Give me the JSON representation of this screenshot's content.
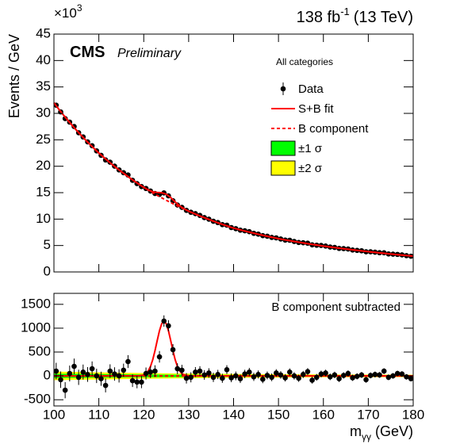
{
  "chart_data": [
    {
      "type": "scatter",
      "y_label": "Events / GeV",
      "y_multiplier": "×10",
      "y_multiplier_exp": "3",
      "lumi": "138 fb",
      "lumi_exp": "-1",
      "energy": "(13 TeV)",
      "experiment": "CMS",
      "status": "Preliminary",
      "legend_title": "All categories",
      "xlim": [
        100,
        180
      ],
      "xticks": [
        100,
        110,
        120,
        130,
        140,
        150,
        160,
        170,
        180
      ],
      "ylim": [
        0,
        45
      ],
      "yticks": [
        0,
        5,
        10,
        15,
        20,
        25,
        30,
        35,
        40,
        45
      ],
      "series": [
        {
          "name": "Data",
          "style": "points",
          "color": "#000000",
          "x": [
            100.5,
            101.5,
            102.5,
            103.5,
            104.5,
            105.5,
            106.5,
            107.5,
            108.5,
            109.5,
            110.5,
            111.5,
            112.5,
            113.5,
            114.5,
            115.5,
            116.5,
            117.5,
            118.5,
            119.5,
            120.5,
            121.5,
            122.5,
            123.5,
            124.5,
            125.5,
            126.5,
            127.5,
            128.5,
            129.5,
            130.5,
            131.5,
            132.5,
            133.5,
            134.5,
            135.5,
            136.5,
            137.5,
            138.5,
            139.5,
            140.5,
            141.5,
            142.5,
            143.5,
            144.5,
            145.5,
            146.5,
            147.5,
            148.5,
            149.5,
            150.5,
            151.5,
            152.5,
            153.5,
            154.5,
            155.5,
            156.5,
            157.5,
            158.5,
            159.5,
            160.5,
            161.5,
            162.5,
            163.5,
            164.5,
            165.5,
            166.5,
            167.5,
            168.5,
            169.5,
            170.5,
            171.5,
            172.5,
            173.5,
            174.5,
            175.5,
            176.5,
            177.5,
            178.5,
            179.5
          ],
          "values": [
            31.55,
            30.28,
            29.01,
            28.35,
            27.52,
            26.34,
            25.54,
            24.61,
            23.88,
            22.91,
            22.07,
            21.19,
            20.77,
            20.01,
            19.31,
            18.78,
            18.34,
            17.33,
            16.72,
            16.15,
            15.79,
            15.31,
            14.84,
            14.67,
            14.95,
            14.4,
            13.47,
            12.66,
            12.22,
            11.65,
            11.29,
            11.03,
            10.7,
            10.28,
            9.99,
            9.59,
            9.34,
            8.96,
            8.85,
            8.4,
            8.19,
            7.9,
            7.79,
            7.62,
            7.31,
            7.16,
            6.87,
            6.76,
            6.54,
            6.45,
            6.24,
            6.03,
            6.0,
            5.77,
            5.58,
            5.52,
            5.44,
            5.13,
            5.06,
            5.01,
            4.9,
            4.71,
            4.64,
            4.45,
            4.41,
            4.34,
            4.15,
            4.08,
            4.01,
            3.82,
            3.81,
            3.74,
            3.64,
            3.63,
            3.41,
            3.36,
            3.32,
            3.23,
            3.09,
            2.98
          ]
        },
        {
          "name": "S+B fit",
          "style": "line",
          "color": "#ff0000",
          "x": [
            100,
            101,
            102,
            103,
            104,
            105,
            106,
            107,
            108,
            109,
            110,
            111,
            112,
            113,
            114,
            115,
            116,
            117,
            118,
            119,
            120,
            121,
            122,
            123,
            124,
            125,
            126,
            127,
            128,
            129,
            130,
            131,
            132,
            133,
            134,
            135,
            136,
            137,
            138,
            139,
            140,
            141,
            142,
            143,
            144,
            145,
            146,
            147,
            148,
            149,
            150,
            151,
            152,
            153,
            154,
            155,
            156,
            157,
            158,
            159,
            160,
            161,
            162,
            163,
            164,
            165,
            166,
            167,
            168,
            169,
            170,
            171,
            172,
            173,
            174,
            175,
            176,
            177,
            178,
            179,
            180
          ],
          "values": [
            32.0,
            30.89,
            29.82,
            28.79,
            27.8,
            26.83,
            25.9,
            25.01,
            24.14,
            23.31,
            22.5,
            21.75,
            21.02,
            20.31,
            19.63,
            18.98,
            18.34,
            17.73,
            17.13,
            16.56,
            16.0,
            15.53,
            15.17,
            15.03,
            14.98,
            14.72,
            14.08,
            13.24,
            12.49,
            11.95,
            11.5,
            11.13,
            10.77,
            10.43,
            10.09,
            9.77,
            9.46,
            9.15,
            8.86,
            8.57,
            8.3,
            8.07,
            7.85,
            7.64,
            7.43,
            7.23,
            7.03,
            6.84,
            6.66,
            6.48,
            6.3,
            6.14,
            5.99,
            5.84,
            5.7,
            5.56,
            5.42,
            5.28,
            5.15,
            5.03,
            4.9,
            4.78,
            4.67,
            4.56,
            4.45,
            4.34,
            4.24,
            4.14,
            4.04,
            3.94,
            3.85,
            3.75,
            3.66,
            3.57,
            3.48,
            3.4,
            3.31,
            3.23,
            3.15,
            3.07,
            3.0
          ]
        },
        {
          "name": "B component",
          "style": "dashed",
          "color": "#ff0000",
          "x": [
            100,
            101,
            102,
            103,
            104,
            105,
            106,
            107,
            108,
            109,
            110,
            111,
            112,
            113,
            114,
            115,
            116,
            117,
            118,
            119,
            120,
            121,
            122,
            123,
            124,
            125,
            126,
            127,
            128,
            129,
            130,
            131,
            132,
            133,
            134,
            135,
            136,
            137,
            138,
            139,
            140,
            141,
            142,
            143,
            144,
            145,
            146,
            147,
            148,
            149,
            150,
            151,
            152,
            153,
            154,
            155,
            156,
            157,
            158,
            159,
            160,
            161,
            162,
            163,
            164,
            165,
            166,
            167,
            168,
            169,
            170,
            171,
            172,
            173,
            174,
            175,
            176,
            177,
            178,
            179,
            180
          ],
          "values": [
            32.0,
            30.89,
            29.82,
            28.79,
            27.8,
            26.83,
            25.9,
            25.01,
            24.14,
            23.31,
            22.5,
            21.75,
            21.02,
            20.31,
            19.63,
            18.98,
            18.34,
            17.73,
            17.13,
            16.56,
            16.0,
            15.48,
            14.98,
            14.5,
            14.03,
            13.57,
            13.13,
            12.71,
            12.3,
            11.9,
            11.5,
            11.13,
            10.77,
            10.43,
            10.09,
            9.77,
            9.46,
            9.15,
            8.86,
            8.57,
            8.3,
            8.07,
            7.85,
            7.64,
            7.43,
            7.23,
            7.03,
            6.84,
            6.66,
            6.48,
            6.3,
            6.14,
            5.99,
            5.84,
            5.7,
            5.56,
            5.42,
            5.28,
            5.15,
            5.03,
            4.9,
            4.78,
            4.67,
            4.56,
            4.45,
            4.34,
            4.24,
            4.14,
            4.04,
            3.94,
            3.85,
            3.75,
            3.66,
            3.57,
            3.48,
            3.4,
            3.31,
            3.23,
            3.15,
            3.07,
            3.0
          ]
        }
      ]
    },
    {
      "type": "scatter",
      "annotation": "B component subtracted",
      "x_label": "m",
      "x_label_sub": "γγ",
      "x_label_unit": "(GeV)",
      "xlim": [
        100,
        180
      ],
      "xticks": [
        100,
        110,
        120,
        130,
        140,
        150,
        160,
        170,
        180
      ],
      "ylim": [
        -630,
        1730
      ],
      "yticks": [
        -500,
        0,
        500,
        1000,
        1500
      ],
      "bands": [
        {
          "name": "±2 σ",
          "color": "#ffff00",
          "x": [
            100,
            110,
            120,
            130,
            140,
            150,
            160,
            170,
            180
          ],
          "lower": [
            -90,
            -75,
            -60,
            -50,
            -40,
            -35,
            -30,
            -28,
            -25
          ],
          "upper": [
            90,
            75,
            60,
            50,
            40,
            35,
            30,
            28,
            25
          ]
        },
        {
          "name": "±1 σ",
          "color": "#00ff00",
          "x": [
            100,
            110,
            120,
            130,
            140,
            150,
            160,
            170,
            180
          ],
          "lower": [
            -45,
            -38,
            -30,
            -25,
            -20,
            -18,
            -15,
            -14,
            -13
          ],
          "upper": [
            45,
            38,
            30,
            25,
            20,
            18,
            15,
            14,
            13
          ]
        }
      ],
      "series": [
        {
          "name": "B component",
          "style": "dashed",
          "color": "#ff0000",
          "x": [
            100,
            180
          ],
          "values": [
            0,
            0
          ]
        },
        {
          "name": "S+B fit",
          "style": "line",
          "color": "#ff0000",
          "x": [
            100,
            118,
            118.5,
            119,
            119.5,
            120,
            120.5,
            121,
            121.5,
            122,
            122.5,
            123,
            123.5,
            124,
            124.5,
            125,
            125.5,
            126,
            126.5,
            127,
            127.5,
            128,
            128.5,
            129,
            129.5,
            130,
            130.5,
            131,
            131.5,
            132,
            180
          ],
          "values": [
            0,
            0,
            1,
            3,
            9,
            22,
            50,
            105,
            198,
            339,
            527,
            741,
            946,
            1095,
            1150,
            1095,
            946,
            741,
            527,
            339,
            198,
            105,
            50,
            22,
            9,
            3,
            1,
            0,
            0,
            0,
            0
          ]
        },
        {
          "name": "Data",
          "style": "points",
          "color": "#000000",
          "x": [
            100.5,
            101.5,
            102.5,
            103.5,
            104.5,
            105.5,
            106.5,
            107.5,
            108.5,
            109.5,
            110.5,
            111.5,
            112.5,
            113.5,
            114.5,
            115.5,
            116.5,
            117.5,
            118.5,
            119.5,
            120.5,
            121.5,
            122.5,
            123.5,
            124.5,
            125.5,
            126.5,
            127.5,
            128.5,
            129.5,
            130.5,
            131.5,
            132.5,
            133.5,
            134.5,
            135.5,
            136.5,
            137.5,
            138.5,
            139.5,
            140.5,
            141.5,
            142.5,
            143.5,
            144.5,
            145.5,
            146.5,
            147.5,
            148.5,
            149.5,
            150.5,
            151.5,
            152.5,
            153.5,
            154.5,
            155.5,
            156.5,
            157.5,
            158.5,
            159.5,
            160.5,
            161.5,
            162.5,
            163.5,
            164.5,
            165.5,
            166.5,
            167.5,
            168.5,
            169.5,
            170.5,
            171.5,
            172.5,
            173.5,
            174.5,
            175.5,
            176.5,
            177.5,
            178.5,
            179.5
          ],
          "values": [
            100,
            -80,
            -300,
            50,
            200,
            -30,
            80,
            30,
            150,
            0,
            -60,
            -200,
            100,
            40,
            0,
            120,
            300,
            -100,
            -130,
            -130,
            50,
            80,
            100,
            400,
            1150,
            1050,
            550,
            150,
            120,
            -50,
            -30,
            80,
            100,
            20,
            60,
            -30,
            30,
            -50,
            130,
            -40,
            0,
            -60,
            40,
            80,
            -20,
            30,
            -70,
            10,
            -30,
            60,
            20,
            -40,
            80,
            0,
            -50,
            30,
            90,
            -90,
            -30,
            40,
            60,
            -20,
            20,
            -60,
            10,
            50,
            -40,
            -10,
            20,
            -80,
            10,
            30,
            20,
            100,
            -30,
            0,
            50,
            40,
            -20,
            -60
          ],
          "errors": [
            175,
            172,
            169,
            166,
            163,
            160,
            158,
            155,
            153,
            150,
            148,
            146,
            143,
            141,
            139,
            137,
            135,
            133,
            130,
            128,
            126,
            124,
            123,
            121,
            119,
            118,
            116,
            114,
            112,
            110,
            106,
            105,
            103,
            101,
            100,
            98,
            97,
            95,
            94,
            92,
            91,
            89,
            88,
            87,
            86,
            84,
            83,
            82,
            81,
            80,
            79,
            78,
            77,
            76,
            75,
            74,
            73,
            72,
            71,
            71,
            70,
            69,
            68,
            67,
            66,
            66,
            65,
            64,
            63,
            63,
            62,
            61,
            61,
            60,
            59,
            58,
            58,
            57,
            56,
            55
          ]
        }
      ]
    }
  ]
}
